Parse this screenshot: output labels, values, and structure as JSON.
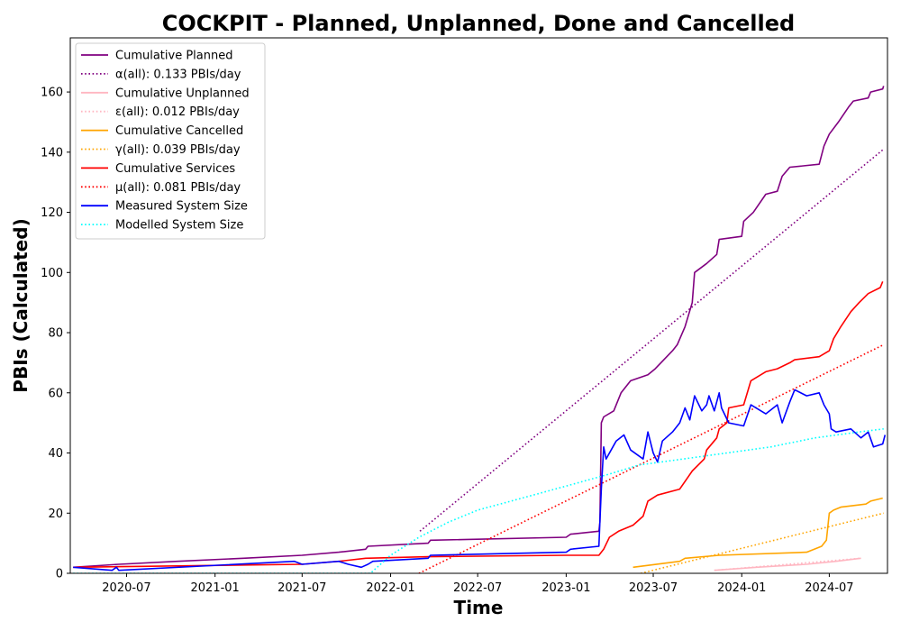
{
  "chart_data": {
    "type": "line",
    "title": "COCKPIT - Planned, Unplanned, Done  and Cancelled",
    "xlabel": "Time",
    "ylabel": "PBIs (Calculated)",
    "xlim": [
      "2020-03-06",
      "2024-10-30"
    ],
    "ylim": [
      0,
      178
    ],
    "xticks": [
      "2020-07",
      "2021-01",
      "2021-07",
      "2022-01",
      "2022-07",
      "2023-01",
      "2023-07",
      "2024-01",
      "2024-07"
    ],
    "yticks": [
      0,
      20,
      40,
      60,
      80,
      100,
      120,
      140,
      160
    ],
    "grid": false,
    "legend_position": "top-left",
    "series": [
      {
        "name": "Cumulative Planned",
        "color": "#800080",
        "style": "solid",
        "points": [
          [
            "2020-03-12",
            2
          ],
          [
            "2020-06-15",
            3
          ],
          [
            "2020-10-15",
            4
          ],
          [
            "2021-03-01",
            5
          ],
          [
            "2021-07-01",
            6
          ],
          [
            "2021-09-15",
            7
          ],
          [
            "2021-11-10",
            8
          ],
          [
            "2021-11-15",
            9
          ],
          [
            "2022-03-20",
            10
          ],
          [
            "2022-03-25",
            11
          ],
          [
            "2023-01-01",
            12
          ],
          [
            "2023-01-10",
            13
          ],
          [
            "2023-03-10",
            14
          ],
          [
            "2023-03-12",
            17
          ],
          [
            "2023-03-15",
            50
          ],
          [
            "2023-03-20",
            52
          ],
          [
            "2023-04-10",
            54
          ],
          [
            "2023-04-25",
            60
          ],
          [
            "2023-05-15",
            64
          ],
          [
            "2023-06-20",
            66
          ],
          [
            "2023-07-05",
            68
          ],
          [
            "2023-08-10",
            74
          ],
          [
            "2023-08-20",
            76
          ],
          [
            "2023-09-05",
            82
          ],
          [
            "2023-09-20",
            90
          ],
          [
            "2023-09-25",
            100
          ],
          [
            "2023-10-20",
            103
          ],
          [
            "2023-11-10",
            106
          ],
          [
            "2023-11-15",
            111
          ],
          [
            "2024-01-01",
            112
          ],
          [
            "2024-01-05",
            117
          ],
          [
            "2024-01-25",
            120
          ],
          [
            "2024-02-20",
            126
          ],
          [
            "2024-03-15",
            127
          ],
          [
            "2024-03-25",
            132
          ],
          [
            "2024-04-10",
            135
          ],
          [
            "2024-06-10",
            136
          ],
          [
            "2024-06-20",
            142
          ],
          [
            "2024-07-01",
            146
          ],
          [
            "2024-07-20",
            150
          ],
          [
            "2024-08-10",
            155
          ],
          [
            "2024-08-20",
            157
          ],
          [
            "2024-09-20",
            158
          ],
          [
            "2024-09-25",
            160
          ],
          [
            "2024-10-20",
            161
          ],
          [
            "2024-10-22",
            162
          ]
        ]
      },
      {
        "name": "α(all): 0.133 PBIs/day",
        "color": "#800080",
        "style": "dotted",
        "points": [
          [
            "2022-03-03",
            14
          ],
          [
            "2024-10-22",
            141
          ]
        ]
      },
      {
        "name": "Cumulative Unplanned",
        "color": "#ffb6c1",
        "style": "solid",
        "points": [
          [
            "2023-11-05",
            1
          ],
          [
            "2024-02-01",
            2
          ],
          [
            "2024-05-15",
            3
          ],
          [
            "2024-07-15",
            4
          ],
          [
            "2024-09-05",
            5
          ]
        ]
      },
      {
        "name": "ε(all): 0.012 PBIs/day",
        "color": "#ffb6c1",
        "style": "dotted",
        "points": [
          [
            "2023-11-05",
            1
          ],
          [
            "2024-09-05",
            5
          ]
        ]
      },
      {
        "name": "Cumulative Cancelled",
        "color": "#ffa500",
        "style": "solid",
        "points": [
          [
            "2023-05-20",
            2
          ],
          [
            "2023-08-25",
            4
          ],
          [
            "2023-09-05",
            5
          ],
          [
            "2023-11-15",
            6
          ],
          [
            "2024-05-15",
            7
          ],
          [
            "2024-06-15",
            9
          ],
          [
            "2024-06-25",
            11
          ],
          [
            "2024-07-01",
            20
          ],
          [
            "2024-07-10",
            21
          ],
          [
            "2024-07-25",
            22
          ],
          [
            "2024-09-15",
            23
          ],
          [
            "2024-09-25",
            24
          ],
          [
            "2024-10-20",
            25
          ]
        ]
      },
      {
        "name": "γ(all): 0.039 PBIs/day",
        "color": "#ffa500",
        "style": "dotted",
        "points": [
          [
            "2023-06-05",
            0
          ],
          [
            "2024-10-22",
            20
          ]
        ]
      },
      {
        "name": "Cumulative Services",
        "color": "#ff0000",
        "style": "solid",
        "points": [
          [
            "2020-03-12",
            2
          ],
          [
            "2021-07-01",
            3
          ],
          [
            "2021-09-15",
            4
          ],
          [
            "2021-11-10",
            5
          ],
          [
            "2022-03-20",
            5.5
          ],
          [
            "2023-01-01",
            6
          ],
          [
            "2023-03-10",
            6
          ],
          [
            "2023-03-20",
            8
          ],
          [
            "2023-04-01",
            12
          ],
          [
            "2023-04-20",
            14
          ],
          [
            "2023-05-20",
            16
          ],
          [
            "2023-06-10",
            19
          ],
          [
            "2023-06-20",
            24
          ],
          [
            "2023-07-10",
            26
          ],
          [
            "2023-08-25",
            28
          ],
          [
            "2023-09-20",
            34
          ],
          [
            "2023-10-15",
            38
          ],
          [
            "2023-10-20",
            41
          ],
          [
            "2023-11-10",
            45
          ],
          [
            "2023-11-15",
            48
          ],
          [
            "2023-12-01",
            50
          ],
          [
            "2023-12-05",
            55
          ],
          [
            "2024-01-05",
            56
          ],
          [
            "2024-01-20",
            64
          ],
          [
            "2024-02-20",
            67
          ],
          [
            "2024-03-15",
            68
          ],
          [
            "2024-04-10",
            70
          ],
          [
            "2024-04-20",
            71
          ],
          [
            "2024-06-10",
            72
          ],
          [
            "2024-07-01",
            74
          ],
          [
            "2024-07-10",
            78
          ],
          [
            "2024-07-25",
            82
          ],
          [
            "2024-08-15",
            87
          ],
          [
            "2024-09-01",
            90
          ],
          [
            "2024-09-20",
            93
          ],
          [
            "2024-10-15",
            95
          ],
          [
            "2024-10-20",
            97
          ]
        ]
      },
      {
        "name": "μ(all): 0.081 PBIs/day",
        "color": "#ff0000",
        "style": "dotted",
        "points": [
          [
            "2022-03-01",
            0
          ],
          [
            "2024-10-22",
            76
          ]
        ]
      },
      {
        "name": "Measured System Size",
        "color": "#0000ff",
        "style": "solid",
        "points": [
          [
            "2020-03-12",
            2
          ],
          [
            "2020-06-01",
            1
          ],
          [
            "2020-06-10",
            2
          ],
          [
            "2020-06-15",
            1
          ],
          [
            "2021-06-15",
            4
          ],
          [
            "2021-07-01",
            3
          ],
          [
            "2021-09-15",
            4
          ],
          [
            "2021-10-05",
            3
          ],
          [
            "2021-11-01",
            2
          ],
          [
            "2021-11-15",
            3
          ],
          [
            "2021-11-25",
            4
          ],
          [
            "2022-03-20",
            5
          ],
          [
            "2022-03-25",
            6
          ],
          [
            "2023-01-01",
            7
          ],
          [
            "2023-01-10",
            8
          ],
          [
            "2023-03-10",
            9
          ],
          [
            "2023-03-12",
            17
          ],
          [
            "2023-03-15",
            28
          ],
          [
            "2023-03-20",
            42
          ],
          [
            "2023-03-25",
            38
          ],
          [
            "2023-04-15",
            44
          ],
          [
            "2023-05-01",
            46
          ],
          [
            "2023-05-15",
            41
          ],
          [
            "2023-06-10",
            38
          ],
          [
            "2023-06-20",
            47
          ],
          [
            "2023-07-01",
            40
          ],
          [
            "2023-07-10",
            37
          ],
          [
            "2023-07-20",
            44
          ],
          [
            "2023-08-10",
            47
          ],
          [
            "2023-08-25",
            50
          ],
          [
            "2023-09-05",
            55
          ],
          [
            "2023-09-15",
            51
          ],
          [
            "2023-09-25",
            59
          ],
          [
            "2023-10-10",
            54
          ],
          [
            "2023-10-20",
            56
          ],
          [
            "2023-10-25",
            59
          ],
          [
            "2023-11-05",
            54
          ],
          [
            "2023-11-15",
            60
          ],
          [
            "2023-11-20",
            55
          ],
          [
            "2023-12-05",
            50
          ],
          [
            "2024-01-05",
            49
          ],
          [
            "2024-01-20",
            56
          ],
          [
            "2024-02-20",
            53
          ],
          [
            "2024-03-15",
            56
          ],
          [
            "2024-03-25",
            50
          ],
          [
            "2024-04-10",
            57
          ],
          [
            "2024-04-20",
            61
          ],
          [
            "2024-05-15",
            59
          ],
          [
            "2024-06-10",
            60
          ],
          [
            "2024-06-20",
            56
          ],
          [
            "2024-07-01",
            53
          ],
          [
            "2024-07-05",
            48
          ],
          [
            "2024-07-15",
            47
          ],
          [
            "2024-08-15",
            48
          ],
          [
            "2024-09-05",
            45
          ],
          [
            "2024-09-20",
            47
          ],
          [
            "2024-10-01",
            42
          ],
          [
            "2024-10-20",
            43
          ],
          [
            "2024-10-25",
            46
          ]
        ]
      },
      {
        "name": "Modelled System Size",
        "color": "#00ffff",
        "style": "dotted",
        "points": [
          [
            "2020-03-12",
            0
          ],
          [
            "2021-11-20",
            0
          ],
          [
            "2022-01-01",
            6
          ],
          [
            "2022-03-01",
            12
          ],
          [
            "2022-05-01",
            17
          ],
          [
            "2022-07-01",
            21
          ],
          [
            "2022-10-01",
            25
          ],
          [
            "2023-01-01",
            29
          ],
          [
            "2023-04-01",
            33
          ],
          [
            "2023-06-01",
            36
          ],
          [
            "2023-09-01",
            38
          ],
          [
            "2023-12-01",
            40
          ],
          [
            "2024-03-01",
            42
          ],
          [
            "2024-06-01",
            45
          ],
          [
            "2024-09-01",
            47
          ],
          [
            "2024-10-22",
            48
          ]
        ]
      }
    ]
  }
}
